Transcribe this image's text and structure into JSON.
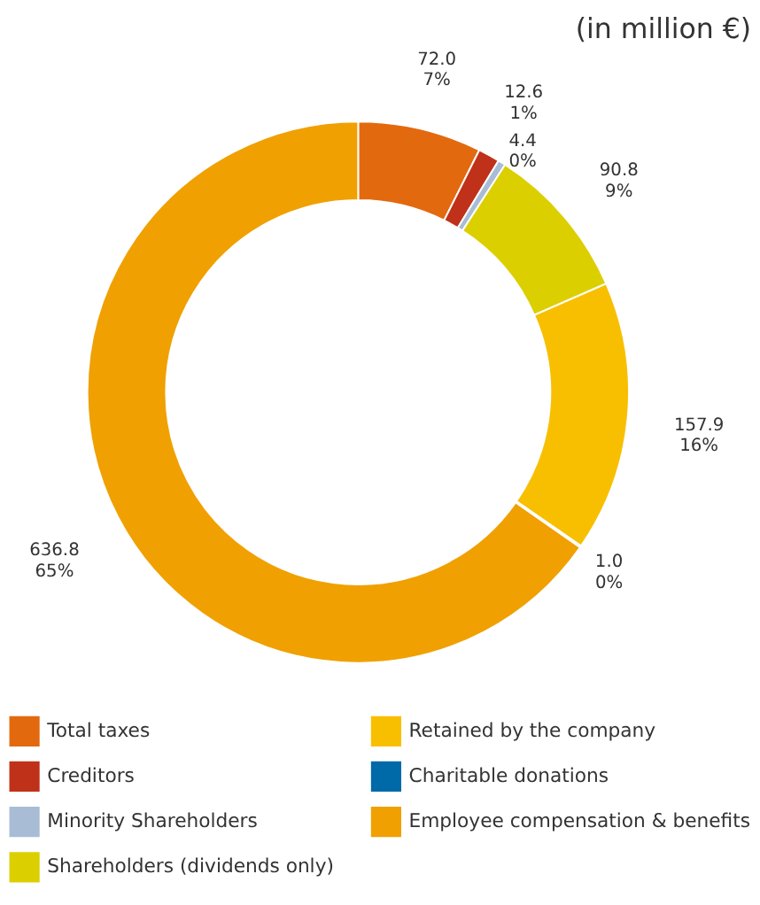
{
  "chart_data": {
    "type": "donut",
    "title": "(in million €)",
    "categories": [
      "Total taxes",
      "Creditors",
      "Minority Shareholders",
      "Shareholders (dividends only)",
      "Retained by the company",
      "Charitable donations",
      "Employee compensation & benefits"
    ],
    "values": [
      72.0,
      12.6,
      4.4,
      90.8,
      157.9,
      1.0,
      636.8
    ],
    "colors": [
      "#e3690f",
      "#c0311a",
      "#a8bcd5",
      "#dccf00",
      "#f8bf00",
      "#0069a8",
      "#f0a000"
    ],
    "value_labels": [
      "72.0\n7%",
      "12.6\n1%",
      "4.4\n0%",
      "90.8\n9%",
      "157.9\n16%",
      "1.0\n0%",
      "636.8\n65%"
    ],
    "legend": "bottom"
  }
}
